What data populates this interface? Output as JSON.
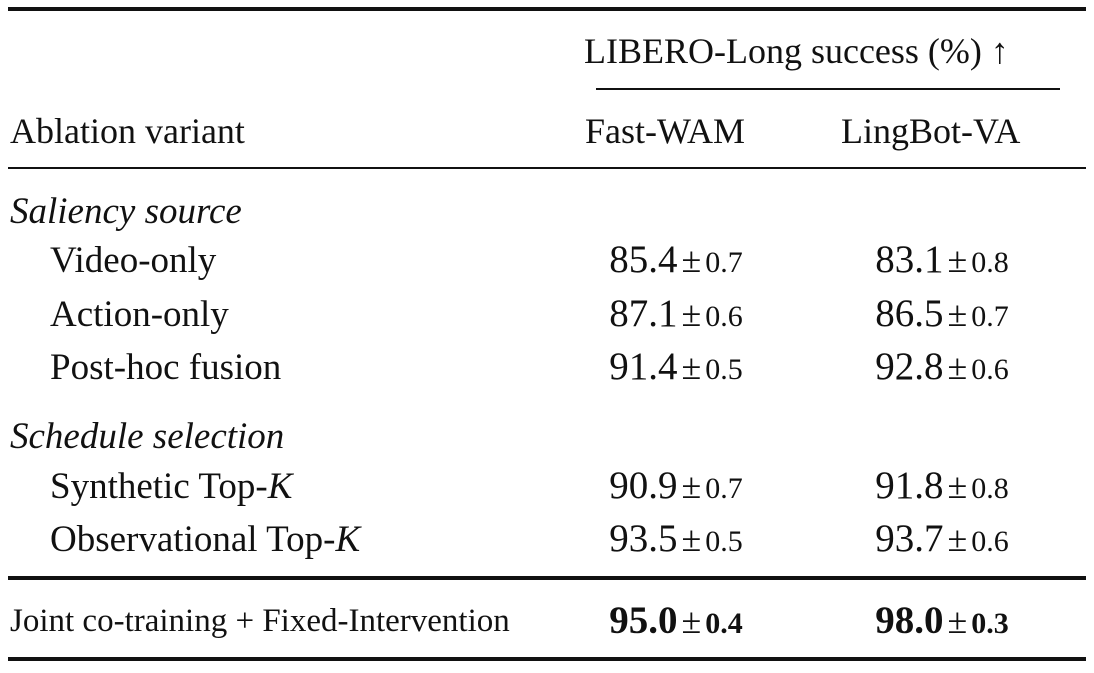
{
  "table": {
    "group_header": "LIBERO-Long success (%) ↑",
    "row_header": "Ablation variant",
    "columns": [
      "Fast-WAM",
      "LingBot-VA"
    ],
    "pm_symbol": "±",
    "sections": [
      {
        "title": "Saliency source",
        "rows": [
          {
            "label": "Video-only",
            "values": [
              {
                "mean": "85.4",
                "sd": "0.7"
              },
              {
                "mean": "83.1",
                "sd": "0.8"
              }
            ]
          },
          {
            "label": "Action-only",
            "values": [
              {
                "mean": "87.1",
                "sd": "0.6"
              },
              {
                "mean": "86.5",
                "sd": "0.7"
              }
            ]
          },
          {
            "label": "Post-hoc fusion",
            "values": [
              {
                "mean": "91.4",
                "sd": "0.5"
              },
              {
                "mean": "92.8",
                "sd": "0.6"
              }
            ]
          }
        ]
      },
      {
        "title": "Schedule selection",
        "rows": [
          {
            "label": "Synthetic Top-",
            "label_var": "K",
            "values": [
              {
                "mean": "90.9",
                "sd": "0.7"
              },
              {
                "mean": "91.8",
                "sd": "0.8"
              }
            ]
          },
          {
            "label": "Observational Top-",
            "label_var": "K",
            "values": [
              {
                "mean": "93.5",
                "sd": "0.5"
              },
              {
                "mean": "93.7",
                "sd": "0.6"
              }
            ]
          }
        ]
      }
    ],
    "final_row": {
      "label": "Joint co-training + Fixed-Intervention",
      "values": [
        {
          "mean": "95.0",
          "sd": "0.4"
        },
        {
          "mean": "98.0",
          "sd": "0.3"
        }
      ]
    }
  }
}
